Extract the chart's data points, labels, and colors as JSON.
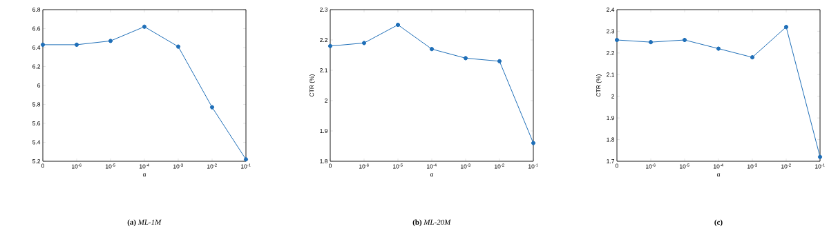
{
  "chart_data": [
    {
      "type": "line",
      "subtitle": "**(a)** *ML-1M*",
      "xlabel": "α",
      "categories": [
        "0",
        "10$^{-6}$",
        "10$^{-5}$",
        "10$^{-4}$",
        "10$^{-3}$",
        "10$^{-2}$",
        "10$^{-1}$"
      ],
      "values": [
        6.43,
        6.43,
        6.47,
        6.62,
        6.41,
        5.77,
        5.22
      ],
      "color": "#1f6fb8",
      "marker": "circle",
      "ylim": [
        5.2,
        6.8
      ],
      "yticks": [
        5.2,
        5.4,
        5.6,
        5.8,
        6,
        6.2,
        6.4,
        6.6,
        6.8
      ]
    },
    {
      "type": "line",
      "subtitle": "**(b)** *ML-20M*",
      "xlabel": "α",
      "ylabel": "CTR (%)",
      "categories": [
        "0",
        "10$^{-6}$",
        "10$^{-5}$",
        "10$^{-4}$",
        "10$^{-3}$",
        "10$^{-2}$",
        "10$^{-1}$"
      ],
      "values": [
        2.18,
        2.19,
        2.25,
        2.17,
        2.14,
        2.13,
        1.86
      ],
      "color": "#1f6fb8",
      "marker": "circle",
      "ylim": [
        1.8,
        2.3
      ],
      "yticks": [
        1.8,
        1.9,
        2,
        2.1,
        2.2,
        2.3
      ]
    },
    {
      "type": "line",
      "subtitle": "**(c)**",
      "xlabel": "α",
      "ylabel": "CTR (%)",
      "categories": [
        "0",
        "10$^{-6}$",
        "10$^{-5}$",
        "10$^{-4}$",
        "10$^{-3}$",
        "10$^{-2}$",
        "10$^{-1}$"
      ],
      "values": [
        2.26,
        2.25,
        2.26,
        2.22,
        2.18,
        2.32,
        1.72
      ],
      "color": "#1f6fb8",
      "marker": "circle",
      "ylim": [
        1.7,
        2.4
      ],
      "yticks": [
        1.7,
        1.8,
        1.9,
        2,
        2.1,
        2.2,
        2.3,
        2.4
      ]
    }
  ]
}
